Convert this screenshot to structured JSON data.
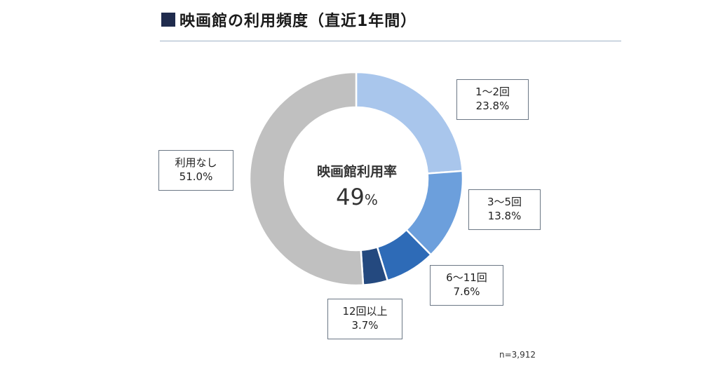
{
  "title": "映画館の利用頻度（直近1年間）",
  "center": {
    "label": "映画館利用率",
    "value": "49",
    "unit": "%"
  },
  "note": "n=3,912",
  "chart_data": {
    "type": "pie",
    "donut": true,
    "title": "映画館の利用頻度（直近1年間）",
    "slices": [
      {
        "label": "1～2回",
        "value": 23.8,
        "value_text": "23.8%",
        "color": "#a9c6ec"
      },
      {
        "label": "3～5回",
        "value": 13.8,
        "value_text": "13.8%",
        "color": "#6c9fdc"
      },
      {
        "label": "6～11回",
        "value": 7.6,
        "value_text": "7.6%",
        "color": "#2e6bb7"
      },
      {
        "label": "12回以上",
        "value": 3.7,
        "value_text": "3.7%",
        "color": "#24497f"
      },
      {
        "label": "利用なし",
        "value": 51.0,
        "value_text": "51.0%",
        "color": "#c0c0c0"
      }
    ]
  }
}
